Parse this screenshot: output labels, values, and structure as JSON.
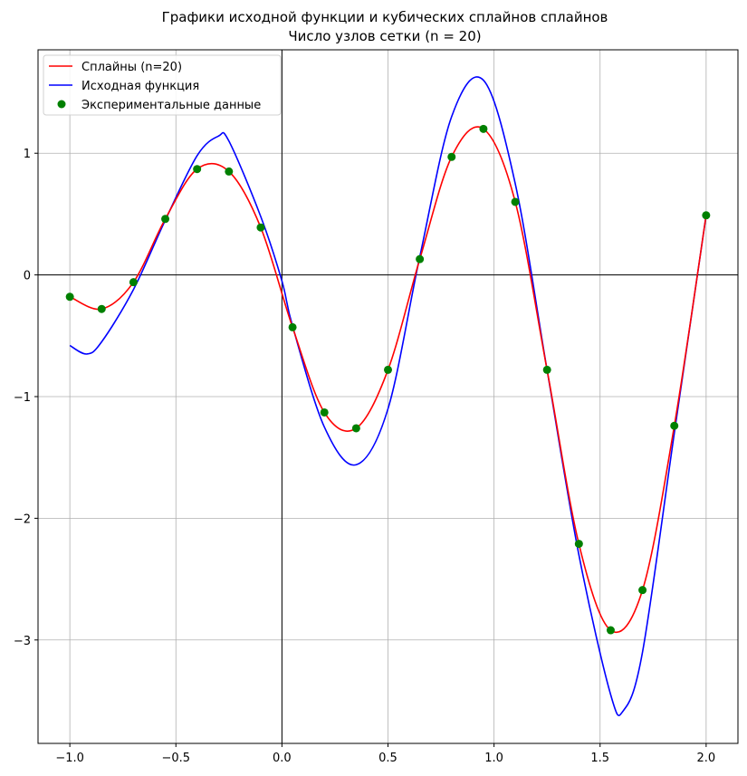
{
  "chart_data": {
    "type": "line",
    "title_line1": "Графики исходной функции и кубических сплайнов сплайнов",
    "title_line2": "Число узлов сетки (n = 20)",
    "xlabel": "",
    "ylabel": "",
    "xlim": [
      -1.15,
      2.15
    ],
    "ylim": [
      -3.85,
      1.85
    ],
    "grid": true,
    "x_ticks": [
      -1.0,
      -0.5,
      0.0,
      0.5,
      1.0,
      1.5,
      2.0
    ],
    "x_tick_labels": [
      "−1.0",
      "−0.5",
      "0.0",
      "0.5",
      "1.0",
      "1.5",
      "2.0"
    ],
    "y_ticks": [
      -3,
      -2,
      -1,
      0,
      1
    ],
    "y_tick_labels": [
      "−3",
      "−2",
      "−1",
      "0",
      "1"
    ],
    "legend_position": "top-left",
    "series": [
      {
        "name": "Сплайны (n=20)",
        "color": "#ff0000",
        "kind": "line",
        "x": [
          -1.0,
          -0.85,
          -0.7,
          -0.55,
          -0.4,
          -0.25,
          -0.1,
          0.05,
          0.2,
          0.35,
          0.5,
          0.65,
          0.8,
          0.95,
          1.1,
          1.25,
          1.4,
          1.55,
          1.7,
          1.85,
          2.0
        ],
        "y": [
          -0.18,
          -0.28,
          -0.06,
          0.46,
          0.87,
          0.85,
          0.39,
          -0.43,
          -1.13,
          -1.26,
          -0.78,
          0.13,
          0.97,
          1.2,
          0.6,
          -0.78,
          -2.21,
          -2.92,
          -2.59,
          -1.24,
          0.49
        ]
      },
      {
        "name": "Исходная функция",
        "color": "#0000ff",
        "kind": "line",
        "x": [
          -1.0,
          -0.92,
          -0.85,
          -0.7,
          -0.55,
          -0.4,
          -0.3,
          -0.25,
          -0.1,
          0.0,
          0.05,
          0.2,
          0.35,
          0.5,
          0.65,
          0.8,
          0.95,
          1.1,
          1.25,
          1.4,
          1.55,
          1.61,
          1.7,
          1.85,
          2.0
        ],
        "y": [
          -0.58,
          -0.65,
          -0.55,
          -0.12,
          0.45,
          0.98,
          1.14,
          1.1,
          0.48,
          -0.05,
          -0.42,
          -1.25,
          -1.56,
          -1.1,
          0.15,
          1.3,
          1.6,
          0.75,
          -0.78,
          -2.3,
          -3.45,
          -3.58,
          -3.1,
          -1.3,
          0.49
        ]
      },
      {
        "name": "Экспериментальные данные",
        "color": "#008000",
        "kind": "scatter",
        "x": [
          -1.0,
          -0.85,
          -0.7,
          -0.55,
          -0.4,
          -0.25,
          -0.1,
          0.05,
          0.2,
          0.35,
          0.5,
          0.65,
          0.8,
          0.95,
          1.1,
          1.25,
          1.4,
          1.55,
          1.7,
          1.85,
          2.0
        ],
        "y": [
          -0.18,
          -0.28,
          -0.06,
          0.46,
          0.87,
          0.85,
          0.39,
          -0.43,
          -1.13,
          -1.26,
          -0.78,
          0.13,
          0.97,
          1.2,
          0.6,
          -0.78,
          -2.21,
          -2.92,
          -2.59,
          -1.24,
          0.49
        ]
      }
    ]
  }
}
